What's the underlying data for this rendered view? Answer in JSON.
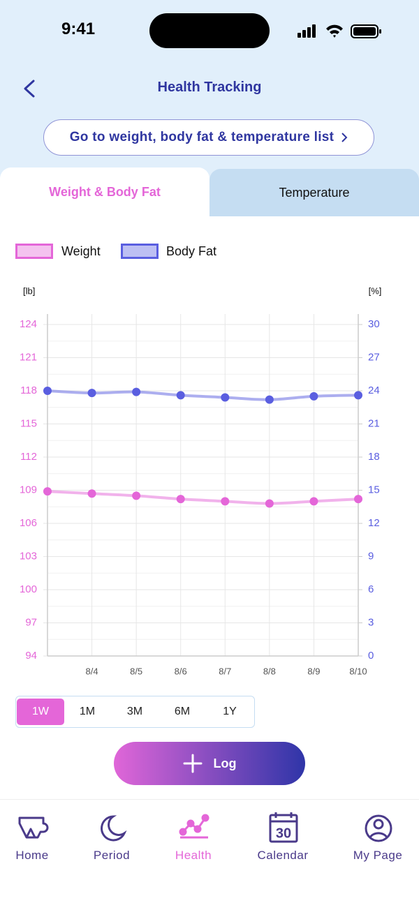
{
  "status_bar": {
    "time": "9:41"
  },
  "header": {
    "title": "Health Tracking"
  },
  "list_button": {
    "label": "Go to weight, body fat & temperature list"
  },
  "tabs": {
    "items": [
      {
        "label": "Weight & Body Fat"
      },
      {
        "label": "Temperature"
      }
    ],
    "active": 0
  },
  "chart_data": {
    "type": "line",
    "y_unit": "[lb]",
    "y2_unit": "[%]",
    "categories": [
      null,
      "8/4",
      "8/5",
      "8/6",
      "8/7",
      "8/8",
      "8/9",
      "8/10"
    ],
    "series": [
      {
        "name": "Weight",
        "color": "#e466d8",
        "values": [
          108.9,
          108.7,
          108.5,
          108.2,
          108.0,
          107.8,
          108.0,
          108.2
        ]
      },
      {
        "name": "Body Fat",
        "color": "#5a5ee0",
        "axis": "y2",
        "values": [
          24.0,
          23.8,
          23.9,
          23.6,
          23.4,
          23.2,
          23.5,
          23.6
        ]
      }
    ],
    "ylim": [
      94,
      124
    ],
    "yticks": [
      94,
      97,
      100,
      103,
      106,
      109,
      112,
      115,
      118,
      121,
      124
    ],
    "y2lim": [
      0,
      30
    ],
    "y2ticks": [
      0,
      3,
      6,
      9,
      12,
      15,
      18,
      21,
      24,
      27,
      30
    ],
    "grid": true
  },
  "range_selector": {
    "options": [
      "1W",
      "1M",
      "3M",
      "6M",
      "1Y"
    ],
    "active": 0
  },
  "log_button": {
    "label": "Log"
  },
  "nav": {
    "items": [
      {
        "label": "Home"
      },
      {
        "label": "Period"
      },
      {
        "label": "Health"
      },
      {
        "label": "Calendar",
        "icon_text": "30"
      },
      {
        "label": "My Page"
      }
    ],
    "active": 2
  }
}
